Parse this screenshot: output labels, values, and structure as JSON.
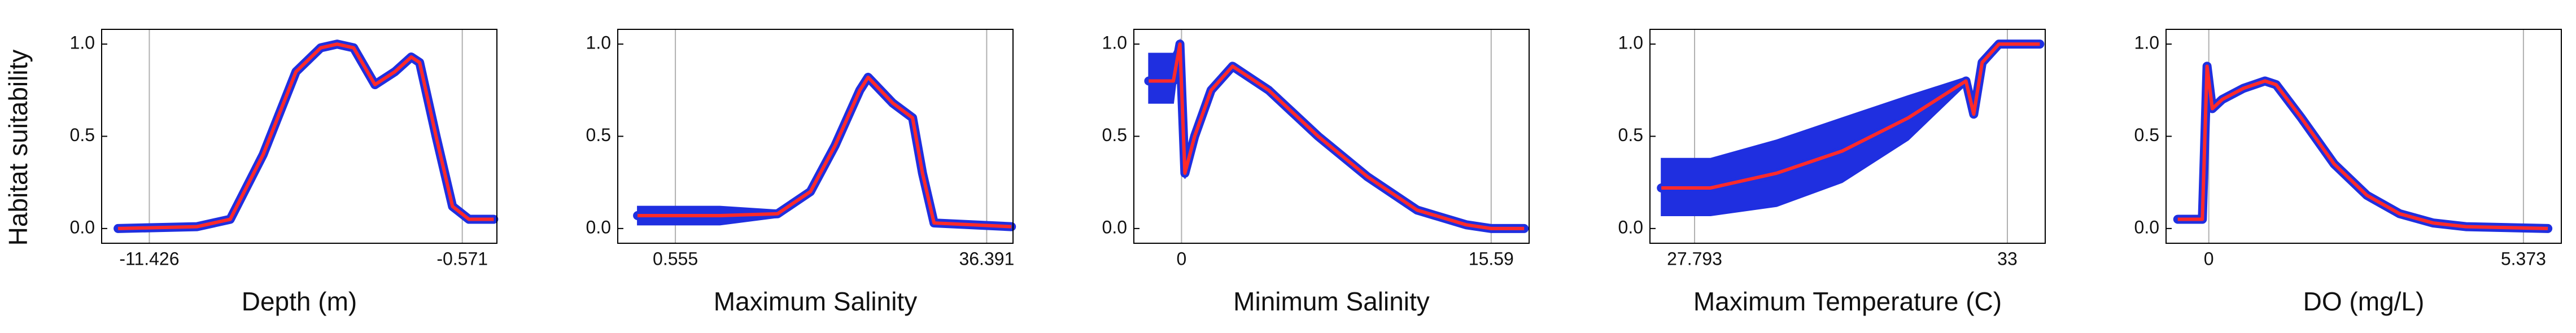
{
  "chart_data": [
    {
      "type": "line",
      "ylabel": "Habitat suitability",
      "xlabel": "Depth (m)",
      "x": [
        -12.51,
        -9.77,
        -8.62,
        -7.48,
        -6.34,
        -5.48,
        -4.91,
        -4.34,
        -3.6,
        -2.91,
        -2.34,
        -2.05,
        -1.48,
        -0.91,
        -0.34,
        0.52
      ],
      "values": [
        0,
        0.01,
        0.05,
        0.4,
        0.85,
        0.98,
        1.0,
        0.98,
        0.78,
        0.85,
        0.93,
        0.9,
        0.5,
        0.12,
        0.05,
        0.05
      ],
      "color": "#ff2a2a",
      "band_color": "#1f2fe0",
      "xlim": [
        -13.08,
        0.63
      ],
      "xticks": [
        -11.426,
        -0.571
      ],
      "ylim": [
        -0.08,
        1.08
      ],
      "yticks": [
        {
          "value": 0,
          "label": "0.0"
        },
        {
          "value": 0.5,
          "label": "0.5"
        },
        {
          "value": 1,
          "label": "1.0"
        }
      ],
      "grid": "x"
    },
    {
      "type": "line",
      "xlabel": "Maximum Salinity",
      "x": [
        -3.8,
        5.68,
        12.32,
        16.1,
        18.94,
        21.79,
        22.74,
        25.58,
        27.86,
        29.0,
        30.33,
        39.24
      ],
      "values": [
        0.07,
        0.07,
        0.08,
        0.2,
        0.45,
        0.75,
        0.82,
        0.68,
        0.6,
        0.3,
        0.03,
        0.01
      ],
      "lower": [
        0.02,
        0.02,
        0.06,
        0.18,
        0.43,
        0.73,
        0.8,
        0.66,
        0.58,
        0.28,
        0.01,
        0
      ],
      "upper": [
        0.12,
        0.12,
        0.1,
        0.22,
        0.47,
        0.77,
        0.84,
        0.7,
        0.62,
        0.32,
        0.05,
        0.03
      ],
      "color": "#ff2a2a",
      "band_color": "#1f2fe0",
      "xlim": [
        -6.08,
        39.42
      ],
      "xticks": [
        0.555,
        36.391
      ],
      "ylim": [
        -0.08,
        1.08
      ],
      "yticks": [
        {
          "value": 0,
          "label": "0.0"
        },
        {
          "value": 0.5,
          "label": "0.5"
        },
        {
          "value": 1,
          "label": "1.0"
        }
      ],
      "grid": "x"
    },
    {
      "type": "line",
      "xlabel": "Minimum Salinity",
      "x": [
        -1.65,
        -0.41,
        -0.08,
        0.17,
        0.66,
        1.49,
        2.57,
        4.39,
        6.88,
        9.37,
        11.86,
        14.34,
        15.59,
        17.25
      ],
      "values": [
        0.8,
        0.8,
        1.0,
        0.3,
        0.5,
        0.75,
        0.88,
        0.75,
        0.5,
        0.28,
        0.1,
        0.02,
        0,
        0
      ],
      "lower": [
        0.68,
        0.68,
        0.97,
        0.27,
        0.48,
        0.73,
        0.86,
        0.73,
        0.48,
        0.26,
        0.08,
        0,
        0,
        0
      ],
      "upper": [
        0.95,
        0.95,
        1.02,
        0.33,
        0.52,
        0.77,
        0.9,
        0.77,
        0.52,
        0.3,
        0.12,
        0.04,
        0.02,
        0.01
      ],
      "color": "#ff2a2a",
      "band_color": "#1f2fe0",
      "xlim": [
        -2.4,
        17.5
      ],
      "xticks": [
        0,
        15.59
      ],
      "ylim": [
        -0.08,
        1.08
      ],
      "yticks": [
        {
          "value": 0,
          "label": "0.0"
        },
        {
          "value": 0.5,
          "label": "0.5"
        },
        {
          "value": 1,
          "label": "1.0"
        }
      ],
      "grid": "x"
    },
    {
      "type": "line",
      "xlabel": "Maximum Temperature (C)",
      "x": [
        27.24,
        28.06,
        29.16,
        30.25,
        31.35,
        32.31,
        32.44,
        32.58,
        32.86,
        33.54
      ],
      "values": [
        0.22,
        0.22,
        0.3,
        0.42,
        0.6,
        0.8,
        0.62,
        0.9,
        1.0,
        1.0
      ],
      "lower": [
        0.07,
        0.07,
        0.12,
        0.25,
        0.48,
        0.78,
        0.6,
        0.88,
        0.98,
        0.98
      ],
      "upper": [
        0.38,
        0.38,
        0.48,
        0.6,
        0.72,
        0.82,
        0.64,
        0.92,
        1.02,
        1.02
      ],
      "color": "#ff2a2a",
      "band_color": "#1f2fe0",
      "xlim": [
        27.05,
        33.63
      ],
      "xticks": [
        27.793,
        33
      ],
      "ylim": [
        -0.08,
        1.08
      ],
      "yticks": [
        {
          "value": 0,
          "label": "0.0"
        },
        {
          "value": 0.5,
          "label": "0.5"
        },
        {
          "value": 1,
          "label": "1.0"
        }
      ],
      "grid": "x"
    },
    {
      "type": "line",
      "xlabel": "DO (mg/L)",
      "x": [
        -0.53,
        -0.11,
        -0.03,
        0.06,
        0.23,
        0.59,
        0.96,
        1.15,
        1.58,
        2.14,
        2.7,
        3.26,
        3.83,
        4.39,
        5.79
      ],
      "values": [
        0.05,
        0.05,
        0.88,
        0.65,
        0.7,
        0.76,
        0.8,
        0.78,
        0.6,
        0.35,
        0.18,
        0.08,
        0.03,
        0.01,
        0
      ],
      "color": "#ff2a2a",
      "band_color": "#1f2fe0",
      "xlim": [
        -0.73,
        6.02
      ],
      "xticks": [
        0,
        5.373
      ],
      "ylim": [
        -0.08,
        1.08
      ],
      "yticks": [
        {
          "value": 0,
          "label": "0.0"
        },
        {
          "value": 0.5,
          "label": "0.5"
        },
        {
          "value": 1,
          "label": "1.0"
        }
      ],
      "grid": "x"
    }
  ]
}
